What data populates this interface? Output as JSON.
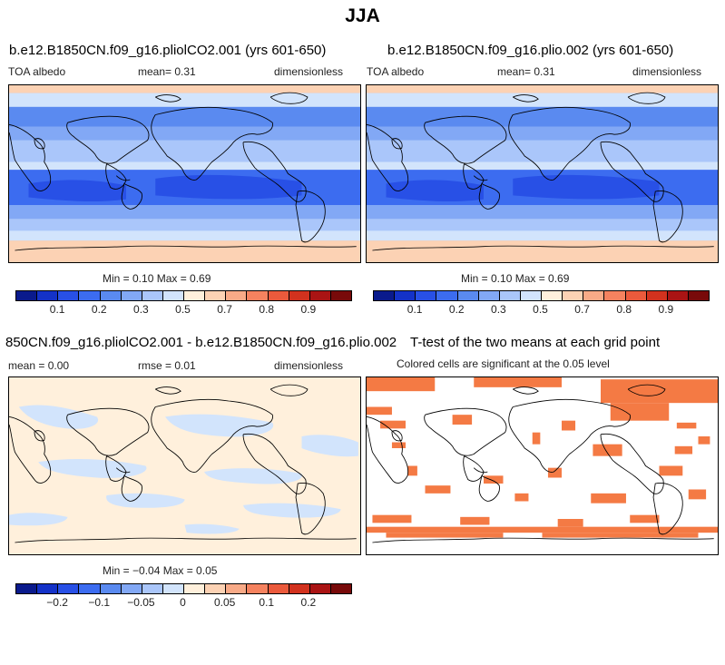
{
  "title": "JJA",
  "panels": {
    "p1": {
      "title": "b.e12.B1850CN.f09_g16.pliolCO2.001 (yrs 601-650)",
      "variable": "TOA albedo",
      "mean": "mean=    0.31",
      "units": "dimensionless",
      "minmax": "Min =    0.10  Max =    0.69"
    },
    "p2": {
      "title": "b.e12.B1850CN.f09_g16.plio.002 (yrs 601-650)",
      "variable": "TOA albedo",
      "mean": "mean=    0.31",
      "units": "dimensionless",
      "minmax": "Min =    0.10  Max =    0.69"
    },
    "p3": {
      "title": "850CN.f09_g16.pliolCO2.001 - b.e12.B1850CN.f09_g16.plio.002",
      "mean": "mean =    0.00",
      "rmse": "rmse =    0.01",
      "units": "dimensionless",
      "minmax": "Min =  −0.04  Max =    0.05"
    },
    "p4": {
      "title": "T-test of the two means at each grid point",
      "subtitle": "Colored cells are significant at the 0.05 level"
    }
  },
  "colorbar_abs": {
    "labels": [
      "0.1",
      "0.2",
      "0.3",
      "0.5",
      "0.7",
      "0.8",
      "0.9"
    ],
    "colors": [
      "#0a1a8c",
      "#1432c8",
      "#2850e6",
      "#3c6cf0",
      "#5a8af0",
      "#82a8f5",
      "#aac6fa",
      "#d2e4fc",
      "#fff0dc",
      "#fcd2b4",
      "#f8aa87",
      "#f5825f",
      "#eb5a3c",
      "#d2321e",
      "#aa1414",
      "#780a0a"
    ]
  },
  "colorbar_diff": {
    "labels": [
      "−0.2",
      "−0.1",
      "−0.05",
      "0",
      "0.05",
      "0.1",
      "0.2"
    ],
    "colors": [
      "#0a1a8c",
      "#1432c8",
      "#2850e6",
      "#3c6cf0",
      "#5a8af0",
      "#82a8f5",
      "#aac6fa",
      "#d2e4fc",
      "#fff0dc",
      "#fcd2b4",
      "#f8aa87",
      "#f5825f",
      "#eb5a3c",
      "#d2321e",
      "#aa1414",
      "#780a0a"
    ]
  },
  "colors": {
    "significant": "#f47a44",
    "ocean_low": "#2850e6",
    "land": "#aac6fa",
    "polar_high": "#fcd2b4"
  }
}
